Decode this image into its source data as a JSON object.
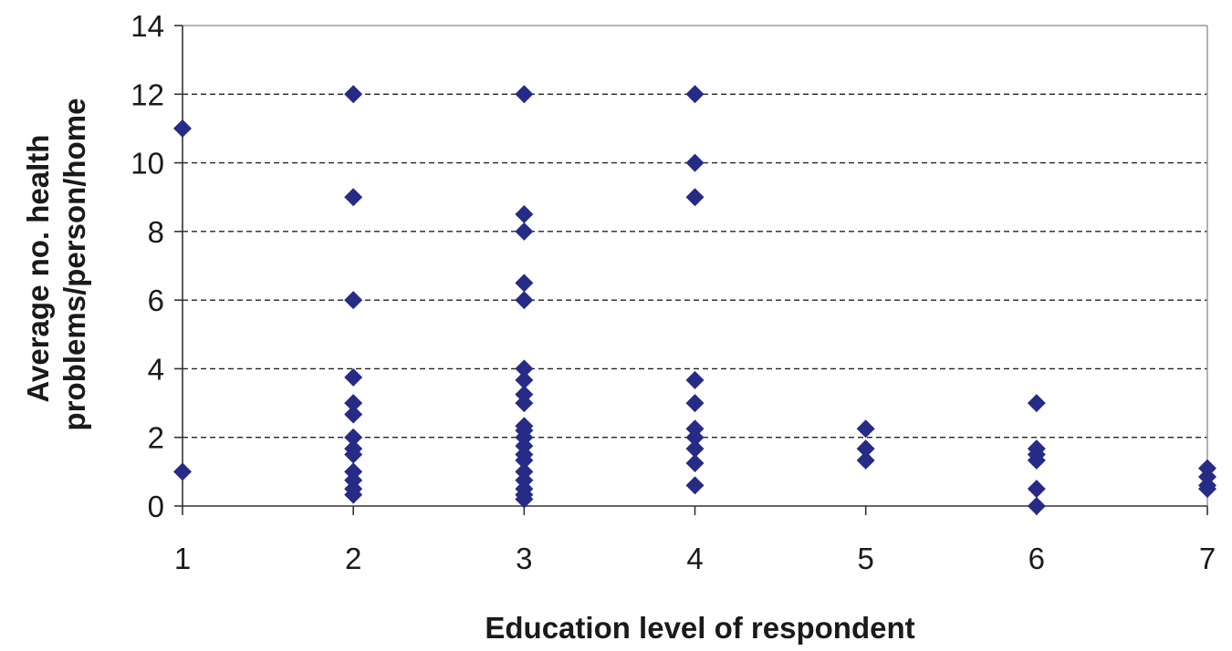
{
  "chart_data": {
    "type": "scatter",
    "title": "",
    "xlabel": "Education level of respondent",
    "ylabel_lines": [
      "Average no. health",
      "problems/person/home"
    ],
    "xlim": [
      1,
      7
    ],
    "ylim": [
      0,
      14
    ],
    "x_ticks": [
      1,
      2,
      3,
      4,
      5,
      6,
      7
    ],
    "y_ticks": [
      0,
      2,
      4,
      6,
      8,
      10,
      12,
      14
    ],
    "grid": "horizontal dashed",
    "marker": "diamond",
    "marker_color": "#262b86",
    "series": [
      {
        "points": [
          {
            "x": 1,
            "y": 11
          },
          {
            "x": 1,
            "y": 1
          },
          {
            "x": 2,
            "y": 12
          },
          {
            "x": 2,
            "y": 9
          },
          {
            "x": 2,
            "y": 6
          },
          {
            "x": 2,
            "y": 3.75
          },
          {
            "x": 2,
            "y": 3
          },
          {
            "x": 2,
            "y": 2.67
          },
          {
            "x": 2,
            "y": 2
          },
          {
            "x": 2,
            "y": 1.67
          },
          {
            "x": 2,
            "y": 1.5
          },
          {
            "x": 2,
            "y": 1
          },
          {
            "x": 2,
            "y": 0.75
          },
          {
            "x": 2,
            "y": 0.5
          },
          {
            "x": 2,
            "y": 0.33
          },
          {
            "x": 3,
            "y": 12
          },
          {
            "x": 3,
            "y": 8.5
          },
          {
            "x": 3,
            "y": 8
          },
          {
            "x": 3,
            "y": 6.5
          },
          {
            "x": 3,
            "y": 6
          },
          {
            "x": 3,
            "y": 4
          },
          {
            "x": 3,
            "y": 3.67
          },
          {
            "x": 3,
            "y": 3.25
          },
          {
            "x": 3,
            "y": 3
          },
          {
            "x": 3,
            "y": 2.33
          },
          {
            "x": 3,
            "y": 2.2
          },
          {
            "x": 3,
            "y": 2
          },
          {
            "x": 3,
            "y": 1.75
          },
          {
            "x": 3,
            "y": 1.5
          },
          {
            "x": 3,
            "y": 1.33
          },
          {
            "x": 3,
            "y": 1
          },
          {
            "x": 3,
            "y": 0.75
          },
          {
            "x": 3,
            "y": 0.5
          },
          {
            "x": 3,
            "y": 0.33
          },
          {
            "x": 3,
            "y": 0.2
          },
          {
            "x": 4,
            "y": 12
          },
          {
            "x": 4,
            "y": 10
          },
          {
            "x": 4,
            "y": 9
          },
          {
            "x": 4,
            "y": 3.67
          },
          {
            "x": 4,
            "y": 3
          },
          {
            "x": 4,
            "y": 2.25
          },
          {
            "x": 4,
            "y": 2
          },
          {
            "x": 4,
            "y": 1.67
          },
          {
            "x": 4,
            "y": 1.25
          },
          {
            "x": 4,
            "y": 0.6
          },
          {
            "x": 5,
            "y": 2.25
          },
          {
            "x": 5,
            "y": 1.67
          },
          {
            "x": 5,
            "y": 1.33
          },
          {
            "x": 6,
            "y": 3
          },
          {
            "x": 6,
            "y": 1.67
          },
          {
            "x": 6,
            "y": 1.5
          },
          {
            "x": 6,
            "y": 1.33
          },
          {
            "x": 6,
            "y": 0.5
          },
          {
            "x": 6,
            "y": 0
          },
          {
            "x": 7,
            "y": 1.1
          },
          {
            "x": 7,
            "y": 0.85
          },
          {
            "x": 7,
            "y": 0.6
          },
          {
            "x": 7,
            "y": 0.5
          }
        ]
      }
    ]
  }
}
